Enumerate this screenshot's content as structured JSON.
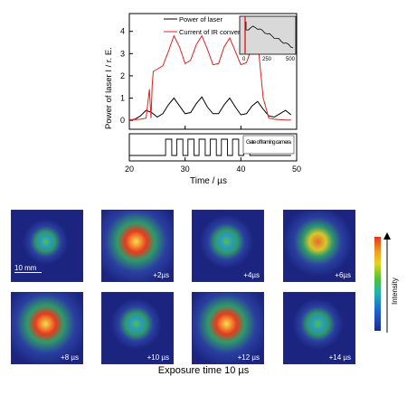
{
  "chart_data": {
    "type": "line",
    "xlabel": "Time / µs",
    "ylabel": "Power of laser I / r. E.",
    "xlim": [
      20,
      50
    ],
    "ylim": [
      -0.4,
      4.8
    ],
    "xticks": [
      "20",
      "30",
      "40",
      "50"
    ],
    "yticks": [
      "0",
      "1",
      "2",
      "3",
      "4"
    ],
    "legend_position": "top-right",
    "series": [
      {
        "name": "Power of laser",
        "color": "#000000",
        "x": [
          20,
          21,
          22,
          23,
          24,
          25,
          26,
          27,
          28,
          29,
          30,
          31,
          32,
          33,
          34,
          35,
          36,
          37,
          38,
          39,
          40,
          41,
          42,
          43,
          44,
          45,
          46,
          47,
          48,
          49
        ],
        "values": [
          0.02,
          0.05,
          0.2,
          0.45,
          0.35,
          0.15,
          0.3,
          0.7,
          1.0,
          0.65,
          0.3,
          0.35,
          0.75,
          1.05,
          0.6,
          0.3,
          0.3,
          0.7,
          1.0,
          0.6,
          0.25,
          0.3,
          0.65,
          0.85,
          0.5,
          0.2,
          0.15,
          0.3,
          0.45,
          0.25
        ]
      },
      {
        "name": "Current of IR converter",
        "color": "#e02020",
        "x": [
          20,
          22,
          23,
          23.6,
          23.9,
          24.1,
          24.3,
          25,
          26,
          27,
          28,
          29,
          30,
          31,
          32,
          33,
          34,
          35,
          36,
          37,
          38,
          39,
          40,
          41,
          42,
          43,
          44,
          45,
          46,
          47,
          48,
          49
        ],
        "values": [
          0.02,
          0.05,
          0.1,
          1.4,
          0.1,
          1.6,
          2.2,
          2.3,
          2.45,
          3.1,
          3.8,
          3.3,
          2.55,
          2.7,
          3.4,
          3.8,
          3.2,
          2.5,
          2.55,
          3.3,
          3.7,
          3.1,
          2.5,
          2.6,
          3.3,
          3.6,
          1.0,
          0.1,
          0.05,
          0.03,
          0.02,
          0.02
        ]
      }
    ],
    "inset": {
      "xticks": [
        "0",
        "250",
        "500"
      ],
      "xlim": [
        0,
        500
      ]
    },
    "gate": {
      "label": "Gate of framing camera",
      "pulses_start": [
        26.5,
        28.5,
        30.5,
        32.5,
        34.5,
        36.5,
        38.5,
        40.5
      ],
      "width": 1.1,
      "xlim": [
        20,
        50
      ]
    }
  },
  "frames": [
    {
      "label": "",
      "intensity": 0.2
    },
    {
      "label": "+2µs",
      "intensity": 1.0
    },
    {
      "label": "+4µs",
      "intensity": 0.35
    },
    {
      "label": "+6µs",
      "intensity": 0.65
    },
    {
      "label": "+8 µs",
      "intensity": 0.95
    },
    {
      "label": "+10 µs",
      "intensity": 0.3
    },
    {
      "label": "+12 µs",
      "intensity": 0.95
    },
    {
      "label": "+14 µs",
      "intensity": 0.3
    }
  ],
  "scale_bar_label": "10 mm",
  "colorbar_label": "Intensity",
  "caption": "Exposure time 10 µs"
}
